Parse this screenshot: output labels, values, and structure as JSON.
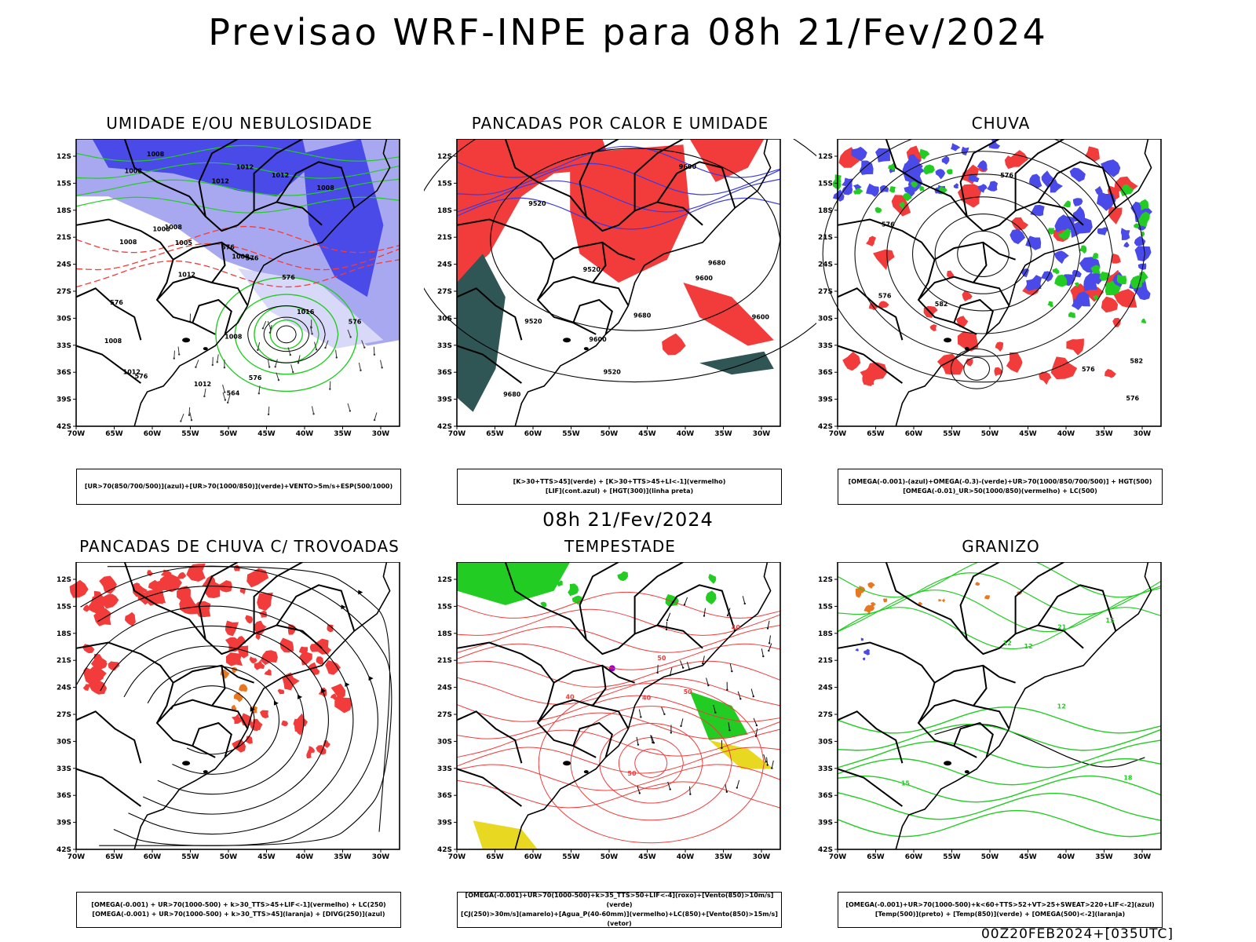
{
  "title": "Previsao WRF-INPE  para 08h 21/Fev/2024",
  "subtitle": "08h 21/Fev/2024",
  "footer": "00Z20FEB2024+[035UTC]",
  "colors": {
    "blue": "#4a4ae8",
    "lightblue": "#a8a8f0",
    "green": "#22cc22",
    "red": "#f23b3b",
    "orange": "#e87722",
    "darkteal": "#2f5555",
    "yellow": "#e8d822",
    "purple": "#9900cc"
  },
  "axes": {
    "lat_labels": [
      "12S",
      "15S",
      "18S",
      "21S",
      "24S",
      "27S",
      "30S",
      "33S",
      "36S",
      "39S",
      "42S"
    ],
    "lon_labels": [
      "70W",
      "65W",
      "60W",
      "55W",
      "50W",
      "45W",
      "40W",
      "35W",
      "30W"
    ]
  },
  "panels": [
    {
      "title": "UMIDADE E/OU NEBULOSIDADE",
      "legend": [
        "[UR>70(850/700/500)](azul)+[UR>70(1000/850)](verde)+VENTO>5m/s+ESP(500/1000)"
      ],
      "labels": [
        "1012",
        "1012",
        "1008",
        "1008",
        "1008",
        "1008",
        "1012",
        "1012",
        "1008",
        "1008",
        "1008",
        "1012",
        "1016",
        "1005",
        "1012",
        "1008",
        "1008",
        "576",
        "576",
        "576",
        "576",
        "576",
        "576",
        "576",
        "564"
      ]
    },
    {
      "title": "PANCADAS POR CALOR E UMIDADE",
      "legend": [
        "[K>30+TTS>45](verde) + [K>30+TTS>45+LI<-1](vermelho)",
        "[LIF](cont.azul) + [HGT(300)](linha preta)"
      ],
      "labels": [
        "9680",
        "9680",
        "9680",
        "9600",
        "9600",
        "9520",
        "9600",
        "9520",
        "9600",
        "9520",
        "9520"
      ]
    },
    {
      "title": "CHUVA",
      "legend": [
        "[OMEGA(-0.001)-(azul)+OMEGA(-0.3)-(verde)+UR>70(1000/850/700/500)] + HGT(500)",
        "[OMEGA(-0.01)_UR>50(1000/850)(vermelho) + LC(500)"
      ],
      "labels": [
        "582",
        "576",
        "582",
        "576",
        "576",
        "576",
        "576"
      ]
    },
    {
      "title": "PANCADAS DE CHUVA C/ TROVOADAS",
      "legend": [
        "[OMEGA(-0.001) + UR>70(1000-500) + k>30_TTS>45+LIF<-1](vermelho) + LC(250)",
        "[OMEGA(-0.001) + UR>70(1000-500) + k>30_TTS>45](laranja) + [DIVG(250)](azul)"
      ],
      "labels": []
    },
    {
      "title": "TEMPESTADE",
      "legend": [
        "[OMEGA(-0.001)+UR>70(1000-500)+k>35_TTS>50+LIF<-4](roxo)+[Vento(850)>10m/s](verde)",
        "[CJ(250)>30m/s](amarelo)+[Agua_P(40-60mm)](vermelho)+LC(850)+[Vento(850)>15m/s](vetor)"
      ],
      "labels": [
        "40",
        "40",
        "40",
        "50",
        "50",
        "50"
      ]
    },
    {
      "title": "GRANIZO",
      "legend": [
        "[OMEGA(-0.001)+UR>70(1000-500)+k<60+TTS>52+VT>25+SWEAT>220+LIF<-2](azul)",
        "[Temp(500)](preto) + [Temp(850)](verde) + [OMEGA(500)<-2](laranja)"
      ],
      "labels": [
        "21",
        "18",
        "15",
        "12",
        "15",
        "12",
        "12"
      ]
    }
  ]
}
